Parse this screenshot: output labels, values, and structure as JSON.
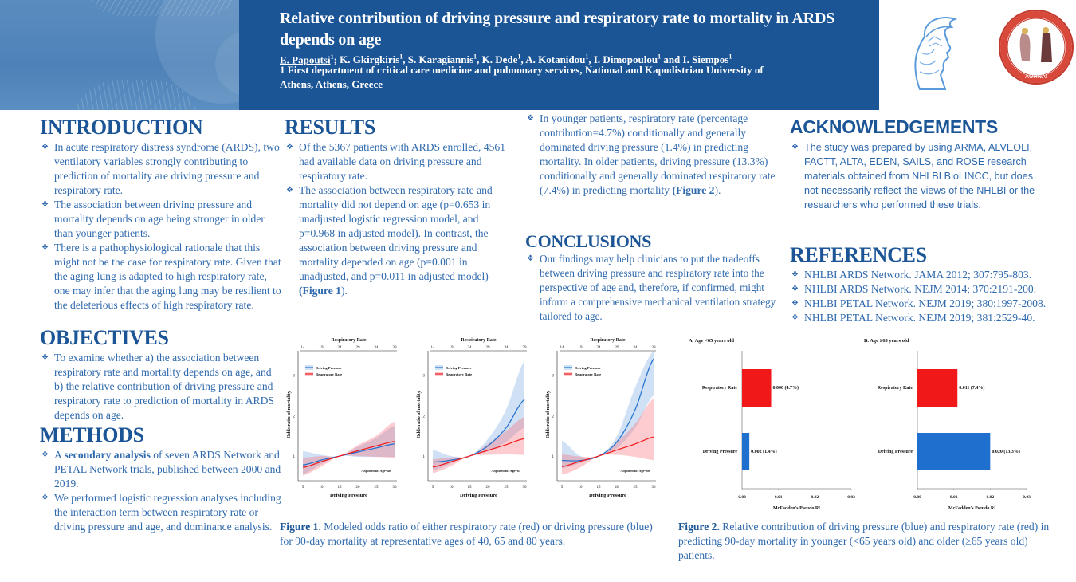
{
  "header": {
    "title": "Relative contribution of driving pressure and respiratory rate to mortality in ARDS depends on age",
    "presenting_author": "E. Papoutsi",
    "authors": [
      {
        "name": "K. Gkirgkiris",
        "sup": "1"
      },
      {
        "name": "S. Karagiannis",
        "sup": "1"
      },
      {
        "name": "K. Dede",
        "sup": "1"
      },
      {
        "name": "A. Kotanidou",
        "sup": "1"
      },
      {
        "name": "I. Dimopoulou",
        "sup": "1"
      },
      {
        "name": "I. Siempos",
        "sup": "1"
      }
    ],
    "presenting_sup": "1",
    "affiliation": "1 First department of critical care medicine and pulmonary services, National and Kapodistrian University of Athens, Athens, Greece",
    "logos": [
      "athena-logo",
      "evangelismos-seal-logo"
    ],
    "seal_text": "ΘΕΡΑΠΕΥΤΗΡΙΟΝ Ο ΕΥΑΓΓΕΛΙΣΜΟΣ",
    "seal_city": "ΑΘΗΝΑΙ"
  },
  "colors": {
    "header_blue": "#1b5596",
    "heading_blue": "#1b5596",
    "text_blue": "#2f69ad",
    "driving_pressure": "#1f6fcf",
    "respiratory_rate": "#f01818"
  },
  "introduction": {
    "heading": "INTRODUCTION",
    "bullets": [
      "In acute respiratory distress syndrome (ARDS), two ventilatory variables strongly contributing to prediction of mortality are driving pressure and respiratory rate.",
      "The association between driving pressure and mortality depends on age being stronger in older than younger patients.",
      "There is a pathophysiological rationale that this might not be the case for respiratory rate. Given that the aging lung is adapted to high respiratory rate, one may infer that the aging lung may be resilient to the deleterious effects of high respiratory rate."
    ]
  },
  "objectives": {
    "heading": "OBJECTIVES",
    "bullets": [
      "To examine whether a) the association between respiratory rate and mortality depends on age, and b) the relative contribution of driving pressure and respiratory rate to prediction of mortality in ARDS depends on age."
    ]
  },
  "methods": {
    "heading": "METHODS",
    "bullet1_pre": "A ",
    "bullet1_bold": "secondary analysis",
    "bullet1_post": " of seven ARDS Network and PETAL Network trials, published between 2000 and 2019.",
    "bullet2": "We performed logistic regression analyses including the interaction term between respiratory rate or driving pressure and age, and dominance analysis."
  },
  "results": {
    "heading": "RESULTS",
    "bullet1": "Of the 5367 patients with ARDS enrolled, 4561 had available data on driving pressure and respiratory rate.",
    "bullet2": "The association between respiratory rate and mortality did not depend on age (p=0.653 in unadjusted logistic regression model, and p=0.968 in adjusted model). In contrast, the association between driving pressure and mortality depended on age (p=0.001 in unadjusted, and p=0.011 in adjusted model) ",
    "bullet2_ref": "(Figure 1",
    "bullet2_end": ").",
    "bullet3": "In younger patients, respiratory rate (percentage contribution=4.7%) conditionally and generally dominated driving pressure (1.4%) in predicting mortality. In older patients, driving pressure (13.3%) conditionally and generally dominated respiratory rate (7.4%) in predicting mortality ",
    "bullet3_ref": "(Figure 2",
    "bullet3_end": ")."
  },
  "conclusions": {
    "heading": "CONCLUSIONS",
    "bullets": [
      "Our findings may help clinicians to put the tradeoffs between driving pressure and respiratory rate into the perspective of age and, therefore, if confirmed, might inform a comprehensive mechanical ventilation strategy tailored to age."
    ]
  },
  "acknowledgements": {
    "heading": "ACKNOWLEDGEMENTS",
    "bullets": [
      "The study was prepared by using ARMA, ALVEOLI, FACTT, ALTA, EDEN, SAILS, and ROSE research materials obtained from NHLBI BioLINCC, but does not necessarily reflect the views of the NHLBI or the researchers who performed these trials."
    ]
  },
  "references": {
    "heading": "REFERENCES",
    "items": [
      "NHLBI ARDS Network. JAMA 2012; 307:795-803.",
      "NHLBI ARDS Network. NEJM 2014; 370:2191-200.",
      "NHLBI PETAL Network. NEJM 2019; 380:1997-2008.",
      "NHLBI PETAL Network. NEJM 2019; 381:2529-40."
    ]
  },
  "figure1": {
    "caption_label": "Figure 1.",
    "caption_text": " Modeled odds ratio of either respiratory rate (red) or driving pressure (blue) for 90-day mortality at representative ages of 40, 65 and 80 years."
  },
  "figure2": {
    "caption_label": "Figure 2.",
    "caption_text": " Relative contribution of driving pressure (blue) and respiratory rate (red) in predicting 90-day mortality in younger (<65 years old) and older (≥65 years old) patients."
  },
  "chart_data": [
    {
      "type": "line",
      "panel": "age-40",
      "title": "Respiratory Rate",
      "xlabel": "Driving Pressure",
      "ylabel": "Odds ratio of mortality",
      "annotation": "Adjusted to: Age=40",
      "x_ticks": [
        5,
        10,
        15,
        20,
        25,
        30
      ],
      "top_ticks": [
        14,
        19,
        24,
        29,
        34,
        39
      ],
      "y_ticks": [
        1,
        2,
        3
      ],
      "xlim": [
        5,
        30
      ],
      "ylim": [
        0.45,
        3.6
      ],
      "legend": [
        "Driving Pressure",
        "Respiratory Rate"
      ],
      "legend_position": "top-left",
      "series": [
        {
          "name": "Driving Pressure",
          "x": [
            5,
            10,
            15,
            20,
            25,
            30
          ],
          "y": [
            0.78,
            0.9,
            1.0,
            1.1,
            1.2,
            1.3
          ],
          "lower": [
            0.55,
            0.8,
            1.0,
            0.98,
            0.98,
            0.98
          ],
          "upper": [
            1.12,
            1.03,
            1.0,
            1.23,
            1.45,
            1.75
          ]
        },
        {
          "name": "Respiratory Rate",
          "x": [
            5,
            10,
            15,
            20,
            25,
            30
          ],
          "y": [
            0.72,
            0.86,
            1.0,
            1.13,
            1.25,
            1.36
          ],
          "lower": [
            0.52,
            0.74,
            1.0,
            1.0,
            0.98,
            0.96
          ],
          "upper": [
            0.96,
            1.0,
            1.0,
            1.27,
            1.5,
            1.85
          ]
        }
      ]
    },
    {
      "type": "line",
      "panel": "age-65",
      "title": "Respiratory Rate",
      "xlabel": "Driving Pressure",
      "ylabel": "Odds ratio of mortality",
      "annotation": "Adjusted to: Age=65",
      "x_ticks": [
        5,
        10,
        15,
        20,
        25,
        30
      ],
      "top_ticks": [
        14,
        19,
        24,
        29,
        34,
        39
      ],
      "y_ticks": [
        1,
        2,
        3
      ],
      "xlim": [
        5,
        30
      ],
      "ylim": [
        0.45,
        3.6
      ],
      "legend": [
        "Driving Pressure",
        "Respiratory Rate"
      ],
      "legend_position": "top-left",
      "series": [
        {
          "name": "Driving Pressure",
          "x": [
            5,
            10,
            15,
            20,
            25,
            30
          ],
          "y": [
            0.85,
            0.9,
            1.0,
            1.25,
            1.7,
            2.4
          ],
          "lower": [
            0.65,
            0.82,
            1.0,
            1.12,
            1.35,
            1.7
          ],
          "upper": [
            1.15,
            1.0,
            1.0,
            1.42,
            2.15,
            3.35
          ]
        },
        {
          "name": "Respiratory Rate",
          "x": [
            5,
            10,
            15,
            20,
            25,
            30
          ],
          "y": [
            0.73,
            0.86,
            1.0,
            1.14,
            1.28,
            1.43
          ],
          "lower": [
            0.58,
            0.76,
            1.0,
            1.03,
            1.04,
            1.03
          ],
          "upper": [
            0.92,
            0.97,
            1.0,
            1.3,
            1.62,
            1.97
          ]
        }
      ]
    },
    {
      "type": "line",
      "panel": "age-80",
      "title": "Respiratory Rate",
      "xlabel": "Driving Pressure",
      "ylabel": "Odds ratio of mortality",
      "annotation": "Adjusted to: Age=80",
      "x_ticks": [
        5,
        10,
        15,
        20,
        25,
        30
      ],
      "top_ticks": [
        14,
        19,
        24,
        29,
        34,
        39
      ],
      "y_ticks": [
        1,
        2,
        3
      ],
      "xlim": [
        5,
        30
      ],
      "ylim": [
        0.45,
        3.6
      ],
      "legend": [
        "Driving Pressure",
        "Respiratory Rate"
      ],
      "legend_position": "top-left",
      "series": [
        {
          "name": "Driving Pressure",
          "x": [
            5,
            10,
            15,
            20,
            25,
            30
          ],
          "y": [
            0.89,
            0.89,
            1.0,
            1.35,
            2.15,
            3.4
          ],
          "lower": [
            0.7,
            0.83,
            1.0,
            1.2,
            1.7,
            2.5
          ],
          "upper": [
            1.38,
            1.0,
            1.0,
            1.5,
            2.7,
            3.6
          ]
        },
        {
          "name": "Respiratory Rate",
          "x": [
            5,
            10,
            15,
            20,
            25,
            30
          ],
          "y": [
            0.74,
            0.87,
            1.0,
            1.15,
            1.3,
            1.47
          ],
          "lower": [
            0.54,
            0.72,
            1.0,
            1.03,
            0.98,
            0.9
          ],
          "upper": [
            1.04,
            0.99,
            1.0,
            1.35,
            1.8,
            2.42
          ]
        }
      ]
    },
    {
      "type": "bar",
      "orientation": "horizontal",
      "title": "A. Age <65 years old",
      "xlabel": "McFadden's Pseudo R²",
      "categories": [
        "Respiratory Rate",
        "Driving Pressure"
      ],
      "values": [
        0.008,
        0.002
      ],
      "labels": [
        "0.008 (4.7%)",
        "0.002 (1.4%)"
      ],
      "x_ticks": [
        "0.00",
        "0.01",
        "0.02",
        "0.03"
      ],
      "xlim": [
        0,
        0.03
      ]
    },
    {
      "type": "bar",
      "orientation": "horizontal",
      "title": "B. Age ≥65 years old",
      "xlabel": "McFadden's Pseudo R²",
      "categories": [
        "Respiratory Rate",
        "Driving Pressure"
      ],
      "values": [
        0.011,
        0.02
      ],
      "labels": [
        "0.011 (7.4%)",
        "0.020 (13.3%)"
      ],
      "x_ticks": [
        "0.00",
        "0.01",
        "0.02",
        "0.03"
      ],
      "xlim": [
        0,
        0.03
      ]
    }
  ]
}
